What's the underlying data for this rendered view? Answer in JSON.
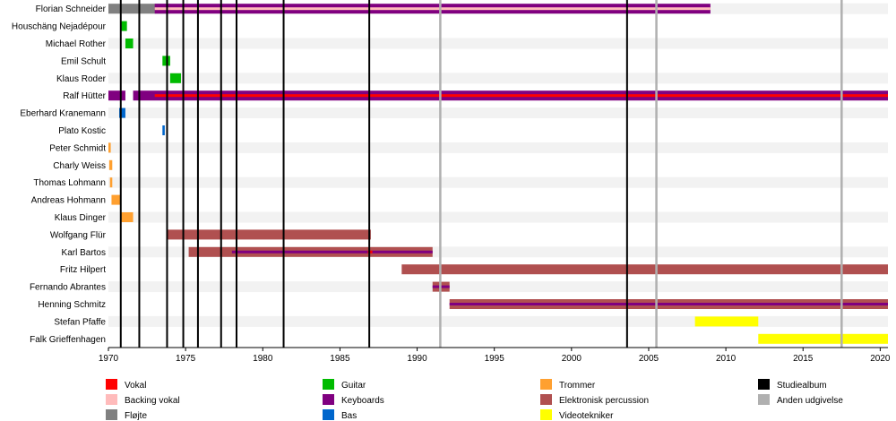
{
  "chart_data": {
    "type": "timeline",
    "title": "",
    "xlabel": "",
    "ylabel": "",
    "xlim": [
      1970,
      2020.5
    ],
    "x_ticks": [
      1970,
      1975,
      1980,
      1985,
      1990,
      1995,
      2000,
      2005,
      2010,
      2015,
      2020
    ],
    "grid": "alternating row stripes",
    "roles": {
      "vokal": {
        "label": "Vokal",
        "color": "#ff0000"
      },
      "backing": {
        "label": "Backing vokal",
        "color": "#ffbbbb"
      },
      "floejte": {
        "label": "Fløjte",
        "color": "#808080"
      },
      "guitar": {
        "label": "Guitar",
        "color": "#00bb00"
      },
      "keyboards": {
        "label": "Keyboards",
        "color": "#800080"
      },
      "bas": {
        "label": "Bas",
        "color": "#0066cc"
      },
      "trommer": {
        "label": "Trommer",
        "color": "#ffa030"
      },
      "elperc": {
        "label": "Elektronisk percussion",
        "color": "#b05050"
      },
      "video": {
        "label": "Videotekniker",
        "color": "#ffff00"
      },
      "studio": {
        "label": "Studiealbum",
        "color": "#000000"
      },
      "andet": {
        "label": "Anden udgivelse",
        "color": "#b0b0b0"
      }
    },
    "legend_columns": [
      [
        "vokal",
        "backing",
        "floejte"
      ],
      [
        "guitar",
        "keyboards",
        "bas"
      ],
      [
        "trommer",
        "elperc",
        "video"
      ],
      [
        "studio",
        "andet"
      ]
    ],
    "members": [
      {
        "name": "Florian Schneider",
        "bars": [
          {
            "start": 1970,
            "end": 1974,
            "role": "floejte"
          },
          {
            "start": 1973,
            "end": 2009,
            "role": "keyboards"
          },
          {
            "start": 1973,
            "end": 1974,
            "role": "backing",
            "thin": true
          },
          {
            "start": 1974,
            "end": 2009,
            "role": "backing",
            "thin": true
          }
        ]
      },
      {
        "name": "Houschäng Nejadépour",
        "bars": [
          {
            "start": 1970.8,
            "end": 1971.2,
            "role": "guitar"
          }
        ]
      },
      {
        "name": "Michael Rother",
        "bars": [
          {
            "start": 1971.1,
            "end": 1971.6,
            "role": "guitar"
          }
        ]
      },
      {
        "name": "Emil Schult",
        "bars": [
          {
            "start": 1973.5,
            "end": 1974.0,
            "role": "guitar"
          }
        ]
      },
      {
        "name": "Klaus Roder",
        "bars": [
          {
            "start": 1974.0,
            "end": 1974.7,
            "role": "guitar"
          }
        ]
      },
      {
        "name": "Ralf Hütter",
        "bars": [
          {
            "start": 1970,
            "end": 1971.1,
            "role": "keyboards"
          },
          {
            "start": 1971.6,
            "end": 2020.5,
            "role": "keyboards"
          },
          {
            "start": 1973,
            "end": 2020.5,
            "role": "vokal",
            "thin": true
          }
        ]
      },
      {
        "name": "Eberhard Kranemann",
        "bars": [
          {
            "start": 1970.7,
            "end": 1971.1,
            "role": "bas"
          }
        ]
      },
      {
        "name": "Plato Kostic",
        "bars": [
          {
            "start": 1973.5,
            "end": 1973.65,
            "role": "bas"
          }
        ]
      },
      {
        "name": "Peter Schmidt",
        "bars": [
          {
            "start": 1970.0,
            "end": 1970.15,
            "role": "trommer"
          }
        ]
      },
      {
        "name": "Charly Weiss",
        "bars": [
          {
            "start": 1970.05,
            "end": 1970.25,
            "role": "trommer"
          }
        ]
      },
      {
        "name": "Thomas Lohmann",
        "bars": [
          {
            "start": 1970.1,
            "end": 1970.25,
            "role": "trommer"
          }
        ]
      },
      {
        "name": "Andreas Hohmann",
        "bars": [
          {
            "start": 1970.2,
            "end": 1970.8,
            "role": "trommer"
          }
        ]
      },
      {
        "name": "Klaus Dinger",
        "bars": [
          {
            "start": 1970.8,
            "end": 1971.6,
            "role": "trommer"
          }
        ]
      },
      {
        "name": "Wolfgang Flür",
        "bars": [
          {
            "start": 1973.8,
            "end": 1987,
            "role": "elperc"
          }
        ]
      },
      {
        "name": "Karl Bartos",
        "bars": [
          {
            "start": 1975.2,
            "end": 1991,
            "role": "elperc"
          },
          {
            "start": 1978,
            "end": 1991,
            "role": "keyboards",
            "thin": true
          },
          {
            "start": 1986.8,
            "end": 1987.1,
            "role": "vokal",
            "thin": true
          }
        ]
      },
      {
        "name": "Fritz Hilpert",
        "bars": [
          {
            "start": 1989,
            "end": 2020.5,
            "role": "elperc"
          }
        ]
      },
      {
        "name": "Fernando Abrantes",
        "bars": [
          {
            "start": 1991,
            "end": 1992.1,
            "role": "elperc"
          },
          {
            "start": 1991,
            "end": 1992.1,
            "role": "keyboards",
            "thin": true
          }
        ]
      },
      {
        "name": "Henning Schmitz",
        "bars": [
          {
            "start": 1992.1,
            "end": 2020.5,
            "role": "elperc"
          },
          {
            "start": 1992.1,
            "end": 2020.5,
            "role": "keyboards",
            "thin": true
          }
        ]
      },
      {
        "name": "Stefan Pfaffe",
        "bars": [
          {
            "start": 2008,
            "end": 2012.1,
            "role": "video"
          }
        ]
      },
      {
        "name": "Falk Grieffenhagen",
        "bars": [
          {
            "start": 2012.1,
            "end": 2020.5,
            "role": "video"
          }
        ]
      }
    ],
    "releases": [
      {
        "year": 1970.8,
        "type": "studio"
      },
      {
        "year": 1972.0,
        "type": "studio"
      },
      {
        "year": 1973.8,
        "type": "studio"
      },
      {
        "year": 1974.85,
        "type": "studio"
      },
      {
        "year": 1975.8,
        "type": "studio"
      },
      {
        "year": 1977.3,
        "type": "studio"
      },
      {
        "year": 1978.3,
        "type": "studio"
      },
      {
        "year": 1981.35,
        "type": "studio"
      },
      {
        "year": 1986.9,
        "type": "studio"
      },
      {
        "year": 1991.5,
        "type": "andet"
      },
      {
        "year": 2003.6,
        "type": "studio"
      },
      {
        "year": 2005.5,
        "type": "andet"
      },
      {
        "year": 2017.5,
        "type": "andet"
      }
    ]
  }
}
